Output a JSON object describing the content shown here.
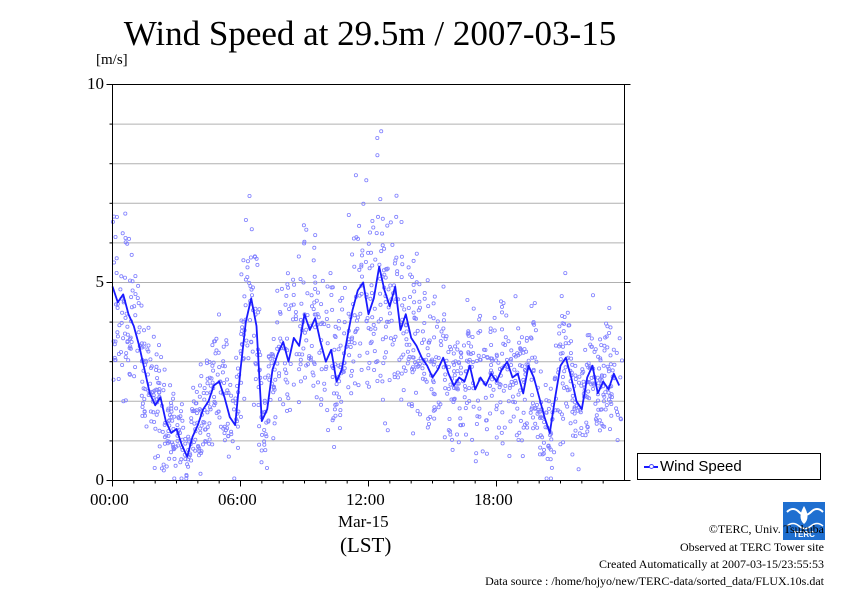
{
  "header": {
    "title": "Wind Speed at 29.5m / 2007-03-15",
    "unit_label": "[m/s]"
  },
  "legend": {
    "label": "Wind Speed"
  },
  "axis": {
    "date_label": "Mar-15",
    "timezone_label": "(LST)"
  },
  "footer": {
    "copyright": "©TERC, Univ. Tsukuba",
    "observed": "Observed at TERC Tower site",
    "created": "Created Automatically at 2007-03-15/23:55:53",
    "source": "Data source : /home/hojyo/new/TERC-data/sorted_data/FLUX.10s.dat"
  },
  "logo": {
    "text": "TERC",
    "icon": "terc-logo-icon"
  },
  "colors": {
    "line": "#1a1aff",
    "scatter": "#8080ff",
    "grid": "#b0b0b0",
    "axis": "#000000"
  },
  "chart_data": {
    "type": "line",
    "title": "Wind Speed at 29.5m / 2007-03-15",
    "ylabel": "[m/s]",
    "xlabel": "(LST)",
    "ylim": [
      0,
      10
    ],
    "xlim": [
      0,
      24
    ],
    "x_unit": "hours (LST)",
    "y_ticks": [
      0,
      5,
      10
    ],
    "y_tick_labels": [
      "0",
      "5",
      "10"
    ],
    "x_ticks": [
      0,
      6,
      12,
      18
    ],
    "x_tick_labels": [
      "00:00",
      "06:00",
      "12:00",
      "18:00"
    ],
    "grid": true,
    "grid_step": 1,
    "legend_position": "right",
    "series": [
      {
        "name": "Wind Speed",
        "style": "line with 10-second scatter samples",
        "x": [
          0.0,
          0.25,
          0.5,
          0.75,
          1.0,
          1.25,
          1.5,
          1.75,
          2.0,
          2.25,
          2.5,
          2.75,
          3.0,
          3.25,
          3.5,
          3.75,
          4.0,
          4.25,
          4.5,
          4.75,
          5.0,
          5.25,
          5.5,
          5.75,
          6.0,
          6.25,
          6.5,
          6.75,
          7.0,
          7.25,
          7.5,
          7.75,
          8.0,
          8.25,
          8.5,
          8.75,
          9.0,
          9.25,
          9.5,
          9.75,
          10.0,
          10.25,
          10.5,
          10.75,
          11.0,
          11.25,
          11.5,
          11.75,
          12.0,
          12.25,
          12.5,
          12.75,
          13.0,
          13.25,
          13.5,
          13.75,
          14.0,
          14.25,
          14.5,
          14.75,
          15.0,
          15.25,
          15.5,
          15.75,
          16.0,
          16.25,
          16.5,
          16.75,
          17.0,
          17.25,
          17.5,
          17.75,
          18.0,
          18.25,
          18.5,
          18.75,
          19.0,
          19.25,
          19.5,
          19.75,
          20.0,
          20.25,
          20.5,
          20.75,
          21.0,
          21.25,
          21.5,
          21.75,
          22.0,
          22.25,
          22.5,
          22.75,
          23.0,
          23.25,
          23.5,
          23.75
        ],
        "values": [
          4.9,
          4.5,
          4.7,
          4.2,
          3.9,
          3.4,
          2.8,
          2.2,
          1.9,
          2.1,
          1.5,
          1.2,
          1.3,
          0.9,
          0.6,
          1.1,
          1.4,
          1.8,
          2.0,
          2.4,
          2.5,
          2.1,
          1.6,
          1.4,
          2.8,
          4.0,
          4.6,
          3.9,
          1.5,
          1.8,
          2.8,
          3.2,
          3.5,
          3.0,
          3.6,
          3.4,
          4.2,
          3.8,
          4.1,
          3.5,
          3.0,
          3.3,
          2.5,
          2.8,
          3.6,
          4.3,
          4.8,
          5.0,
          4.2,
          4.6,
          5.4,
          4.8,
          4.4,
          4.9,
          3.8,
          4.2,
          3.6,
          3.4,
          3.1,
          2.9,
          2.6,
          2.8,
          3.1,
          2.7,
          2.4,
          2.6,
          2.5,
          2.9,
          2.3,
          2.6,
          2.4,
          2.7,
          2.5,
          2.8,
          3.0,
          2.6,
          2.7,
          2.2,
          2.9,
          2.6,
          2.1,
          1.6,
          1.2,
          2.1,
          2.9,
          3.1,
          2.6,
          2.0,
          1.8,
          2.6,
          2.9,
          2.2,
          2.5,
          2.3,
          2.7,
          2.4
        ]
      }
    ]
  }
}
